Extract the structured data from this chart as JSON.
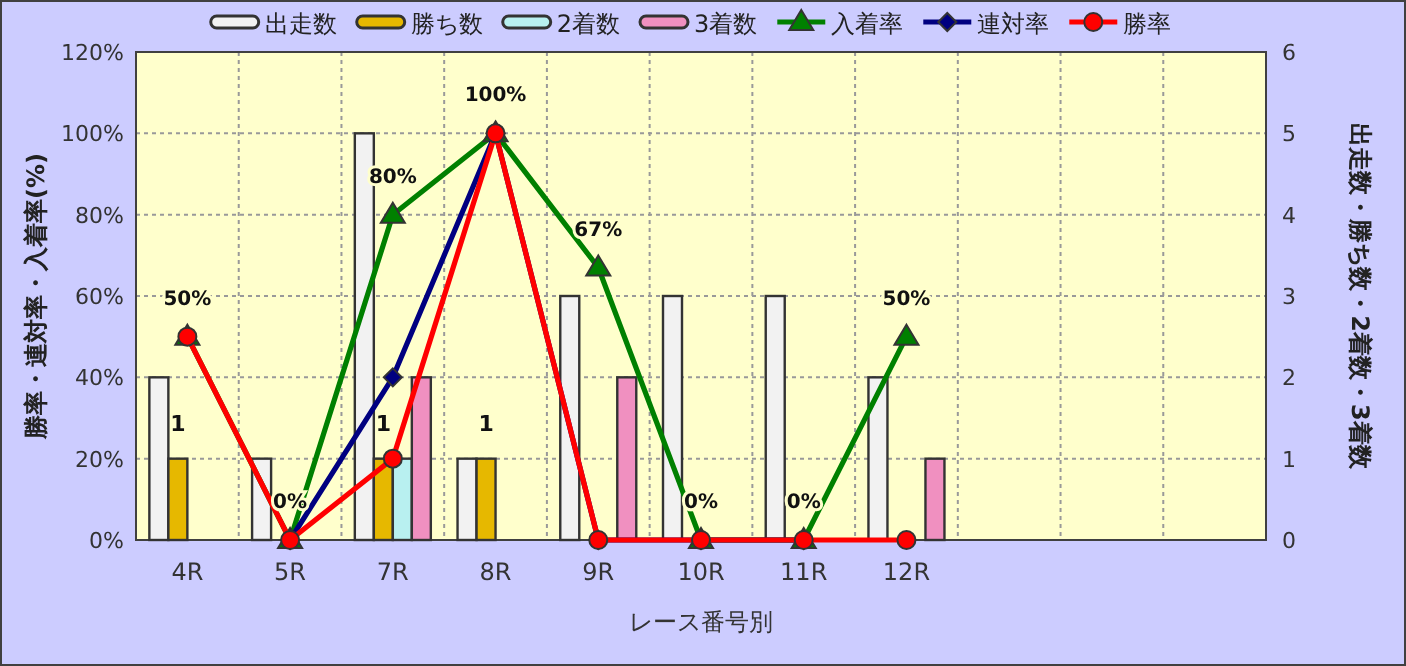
{
  "chart_data": {
    "type": "bar",
    "xlabel": "レース番号別",
    "ylabel": "勝率・連対率・入着率(%)",
    "y2label": "出走数・勝ち数・2着数・3着数",
    "categories": [
      "4R",
      "5R",
      "7R",
      "8R",
      "9R",
      "10R",
      "11R",
      "12R",
      null,
      null,
      null
    ],
    "series": [
      {
        "name": "出走数",
        "axis": "y2",
        "color": "#f2f2f2",
        "values": [
          2,
          1,
          5,
          1,
          3,
          3,
          3,
          2,
          null,
          null,
          null
        ]
      },
      {
        "name": "勝ち数",
        "axis": "y2",
        "color": "#e6b800",
        "values": [
          1,
          0,
          1,
          1,
          0,
          0,
          0,
          0,
          null,
          null,
          null
        ],
        "value_labels": [
          "1",
          null,
          "1",
          "1",
          null,
          null,
          null,
          null,
          null,
          null,
          null
        ]
      },
      {
        "name": "2着数",
        "axis": "y2",
        "color": "#b8f0f0",
        "values": [
          0,
          0,
          1,
          0,
          0,
          0,
          0,
          0,
          null,
          null,
          null
        ]
      },
      {
        "name": "3着数",
        "axis": "y2",
        "color": "#f090c0",
        "values": [
          0,
          0,
          2,
          0,
          2,
          0,
          0,
          1,
          null,
          null,
          null
        ]
      },
      {
        "name": "入着率",
        "type": "line",
        "color": "#008000",
        "marker": "triangle",
        "values": [
          50,
          0,
          80,
          100,
          67,
          0,
          0,
          50,
          null,
          null,
          null
        ],
        "value_labels": [
          "50%",
          "0%",
          "80%",
          "100%",
          "67%",
          "0%",
          "0%",
          "50%",
          null,
          null,
          null
        ]
      },
      {
        "name": "連対率",
        "type": "line",
        "color": "#000080",
        "marker": "diamond",
        "values": [
          null,
          0,
          40,
          100,
          0,
          0,
          0,
          null,
          null,
          null,
          null
        ]
      },
      {
        "name": "勝率",
        "type": "line",
        "color": "#ff0000",
        "marker": "circle",
        "values": [
          50,
          0,
          20,
          100,
          0,
          0,
          0,
          0,
          null,
          null,
          null
        ]
      }
    ],
    "ylim": [
      0,
      120
    ],
    "yticks": [
      {
        "value": 0,
        "label": "0%"
      },
      {
        "value": 20,
        "label": "20%"
      },
      {
        "value": 40,
        "label": "40%"
      },
      {
        "value": 60,
        "label": "60%"
      },
      {
        "value": 80,
        "label": "80%"
      },
      {
        "value": 100,
        "label": "100%"
      },
      {
        "value": 120,
        "label": "120%"
      }
    ],
    "y2lim": [
      0,
      6
    ],
    "y2ticks": [
      0,
      1,
      2,
      3,
      4,
      5,
      6
    ],
    "grid": true,
    "legend": "top"
  }
}
